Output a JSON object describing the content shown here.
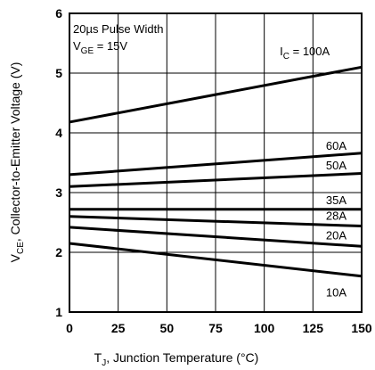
{
  "chart_data": {
    "type": "line",
    "xlabel": {
      "main": "T",
      "sub": "J",
      "rest": ", Junction Temperature (°C)"
    },
    "ylabel": {
      "main": "V",
      "sub": "CE",
      "rest": ", Collector-to-Emitter Voltage (V)"
    },
    "xlim": [
      0,
      150
    ],
    "ylim": [
      1,
      6
    ],
    "x_ticks": [
      0,
      25,
      50,
      75,
      100,
      125,
      150
    ],
    "y_ticks": [
      1,
      2,
      3,
      4,
      5,
      6
    ],
    "x_tick_labels": [
      "0",
      "25",
      "50",
      "75",
      "100",
      "125",
      "150"
    ],
    "y_tick_labels": [
      "1",
      "2",
      "3",
      "4",
      "5",
      "6"
    ],
    "grid": true,
    "annotations": {
      "line1": "20µs Pulse Width",
      "line2_main": "V",
      "line2_sub": "GE",
      "line2_rest": " = 15V"
    },
    "ic_prefix_main": "I",
    "ic_prefix_sub": "C",
    "ic_prefix_rest": " = ",
    "series": [
      {
        "name": "100A",
        "x": [
          0,
          150
        ],
        "y": [
          4.18,
          5.1
        ]
      },
      {
        "name": "60A",
        "x": [
          0,
          150
        ],
        "y": [
          3.3,
          3.66
        ]
      },
      {
        "name": "50A",
        "x": [
          0,
          150
        ],
        "y": [
          3.1,
          3.32
        ]
      },
      {
        "name": "35A",
        "x": [
          0,
          150
        ],
        "y": [
          2.72,
          2.72
        ]
      },
      {
        "name": "28A",
        "x": [
          0,
          150
        ],
        "y": [
          2.6,
          2.44
        ]
      },
      {
        "name": "20A",
        "x": [
          0,
          150
        ],
        "y": [
          2.42,
          2.1
        ]
      },
      {
        "name": "10A",
        "x": [
          0,
          150
        ],
        "y": [
          2.15,
          1.6
        ]
      }
    ]
  }
}
